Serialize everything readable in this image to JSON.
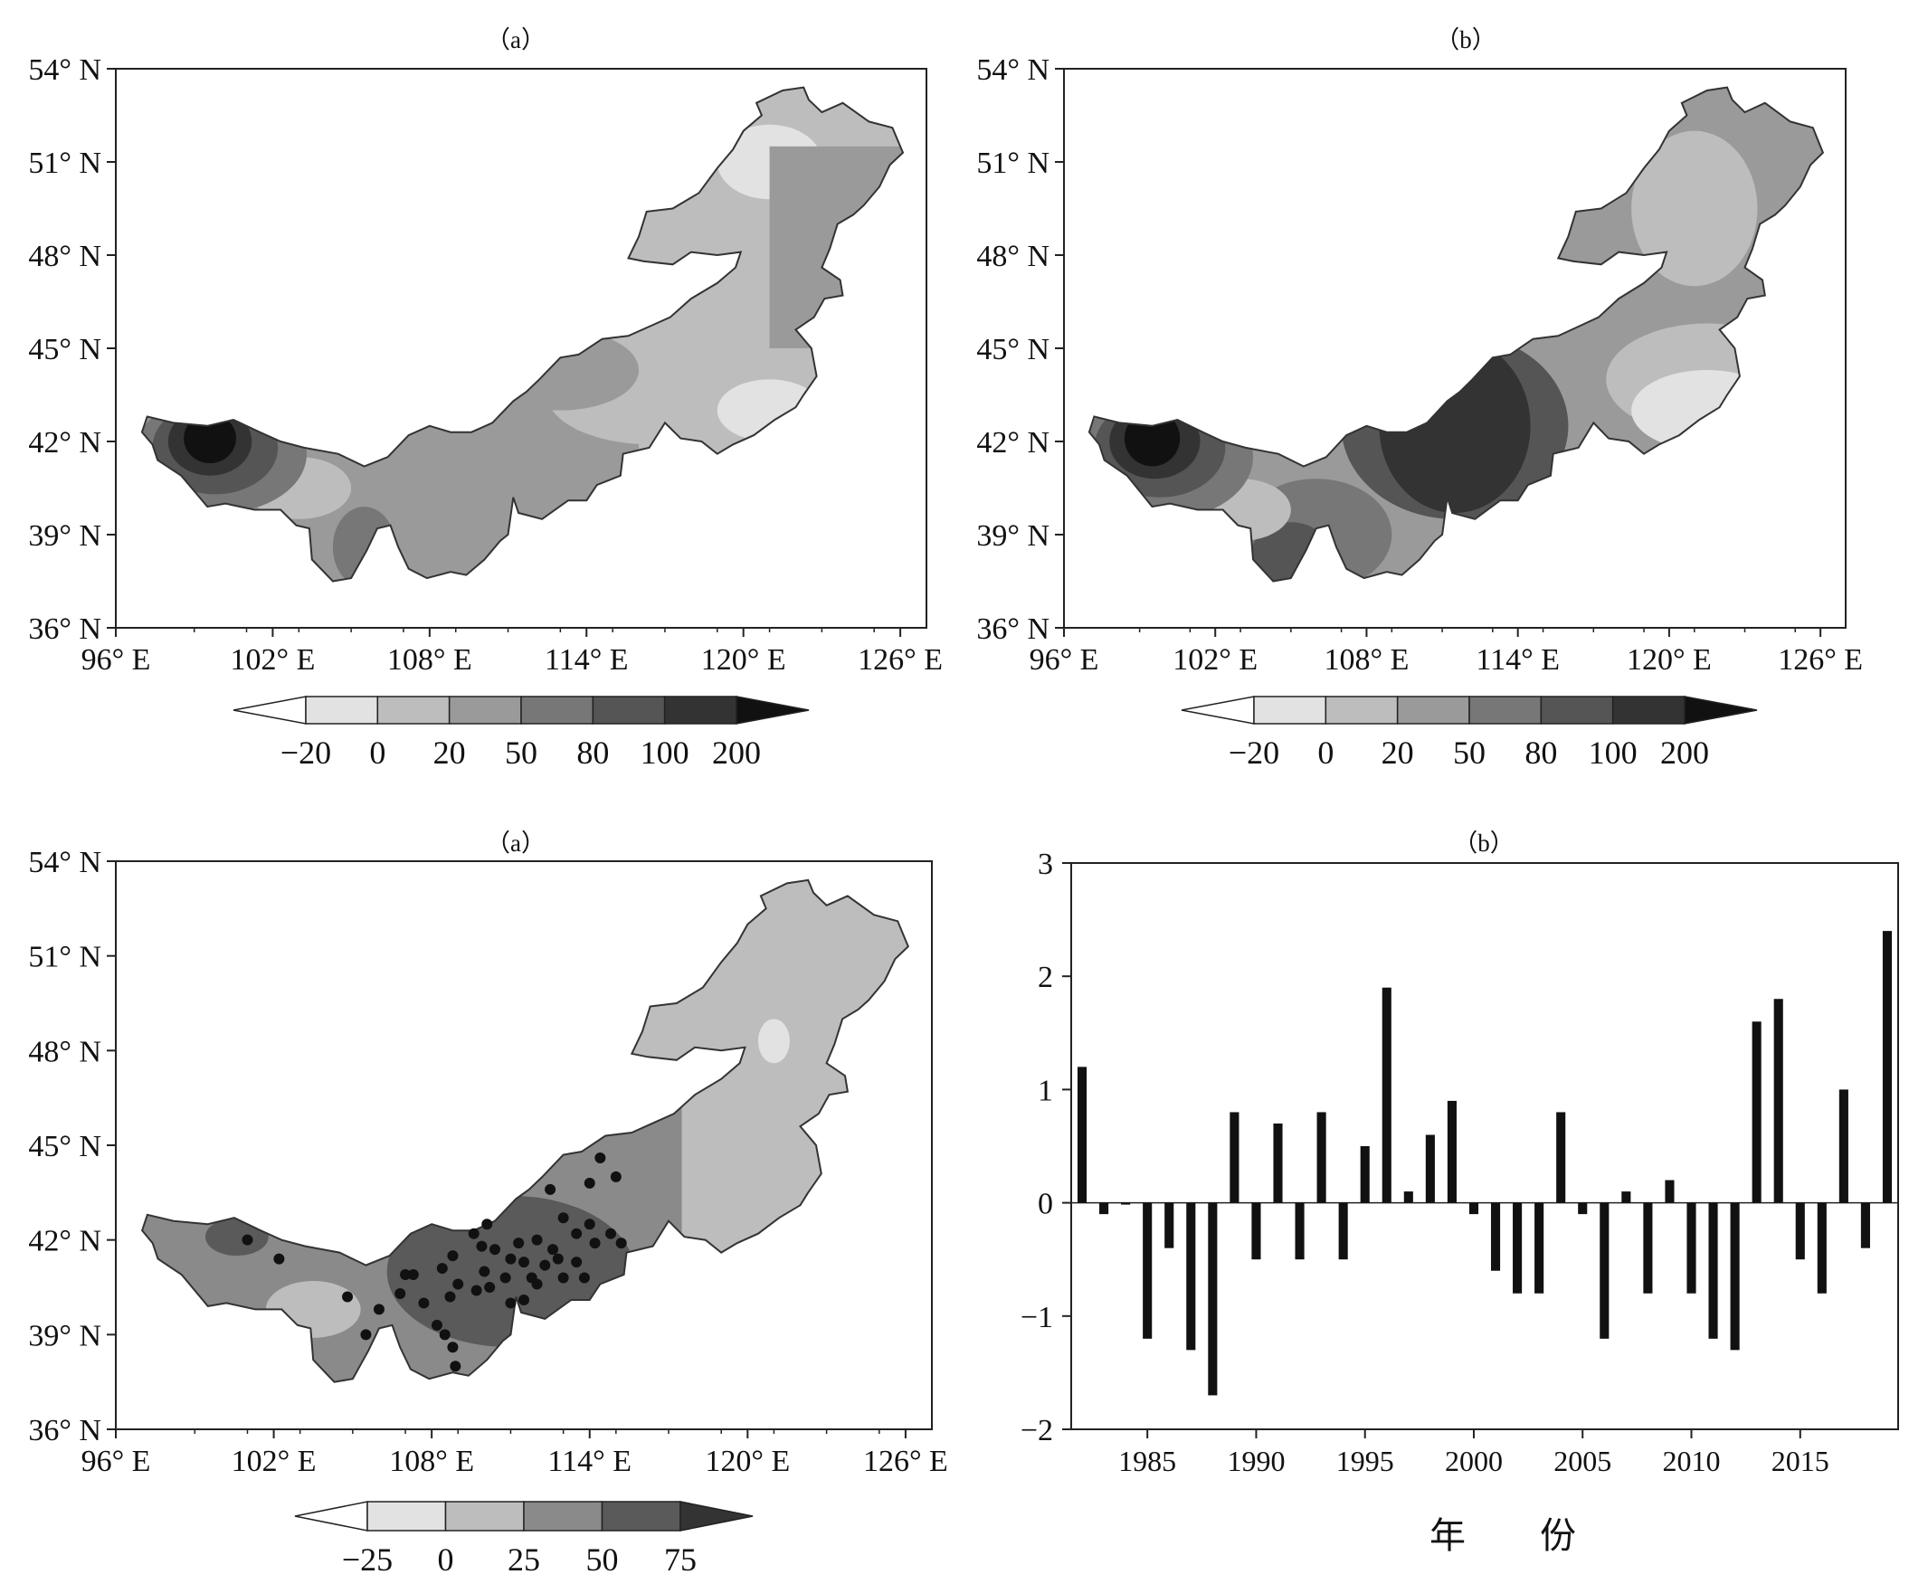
{
  "panels": {
    "top_left": {
      "label": "（a）",
      "lat_ticks": [
        "54° N",
        "51° N",
        "48° N",
        "45° N",
        "42° N",
        "39° N",
        "36° N"
      ],
      "lon_ticks": [
        "96° E",
        "102° E",
        "108° E",
        "114° E",
        "120° E",
        "126° E"
      ],
      "colorbar": {
        "ticks": [
          "−20",
          "0",
          "20",
          "50",
          "80",
          "100",
          "200"
        ],
        "colors": [
          "#ffffff",
          "#e2e2e2",
          "#bdbdbd",
          "#9a9a9a",
          "#777777",
          "#555555",
          "#333333",
          "#111111"
        ]
      }
    },
    "top_right": {
      "label": "（b）",
      "lat_ticks": [
        "54° N",
        "51° N",
        "48° N",
        "45° N",
        "42° N",
        "39° N",
        "36° N"
      ],
      "lon_ticks": [
        "96° E",
        "102° E",
        "108° E",
        "114° E",
        "120° E",
        "126° E"
      ],
      "colorbar": {
        "ticks": [
          "−20",
          "0",
          "20",
          "50",
          "80",
          "100",
          "200"
        ],
        "colors": [
          "#ffffff",
          "#e2e2e2",
          "#bdbdbd",
          "#9a9a9a",
          "#777777",
          "#555555",
          "#333333",
          "#111111"
        ]
      }
    },
    "bottom_left": {
      "label": "（a）",
      "lat_ticks": [
        "54° N",
        "51° N",
        "48° N",
        "45° N",
        "42° N",
        "39° N",
        "36° N"
      ],
      "lon_ticks": [
        "96° E",
        "102° E",
        "108° E",
        "114° E",
        "120° E",
        "126° E"
      ],
      "colorbar": {
        "ticks": [
          "−25",
          "0",
          "25",
          "50",
          "75"
        ],
        "colors": [
          "#ffffff",
          "#e2e2e2",
          "#bdbdbd",
          "#8a8a8a",
          "#5a5a5a",
          "#333333"
        ]
      }
    },
    "bottom_right": {
      "label": "（b）",
      "xlabel": "年 份",
      "chart_data": {
        "type": "bar",
        "x": [
          1982,
          1983,
          1984,
          1985,
          1986,
          1987,
          1988,
          1989,
          1990,
          1991,
          1992,
          1993,
          1994,
          1995,
          1996,
          1997,
          1998,
          1999,
          2000,
          2001,
          2002,
          2003,
          2004,
          2005,
          2006,
          2007,
          2008,
          2009,
          2010,
          2011,
          2012,
          2013,
          2014,
          2015,
          2016,
          2017,
          2018,
          2019
        ],
        "values": [
          1.2,
          -0.1,
          0.0,
          -1.2,
          -0.4,
          -1.3,
          -1.7,
          0.8,
          -0.5,
          0.7,
          -0.5,
          0.8,
          -0.5,
          0.5,
          1.9,
          0.1,
          0.6,
          0.9,
          -0.1,
          -0.6,
          -0.8,
          -0.8,
          0.8,
          -0.1,
          -1.2,
          0.1,
          -0.8,
          0.2,
          -0.8,
          -1.2,
          -1.3,
          1.6,
          1.8,
          -0.5,
          -0.8,
          1.0,
          -0.4,
          2.4
        ],
        "xticks": [
          "1985",
          "1990",
          "1995",
          "2000",
          "2005",
          "2010",
          "2015"
        ],
        "yticks": [
          "3",
          "2",
          "1",
          "0",
          "−1",
          "−2"
        ],
        "ylim": [
          -2,
          3
        ],
        "xlim": [
          1981.5,
          2019.5
        ]
      }
    }
  }
}
